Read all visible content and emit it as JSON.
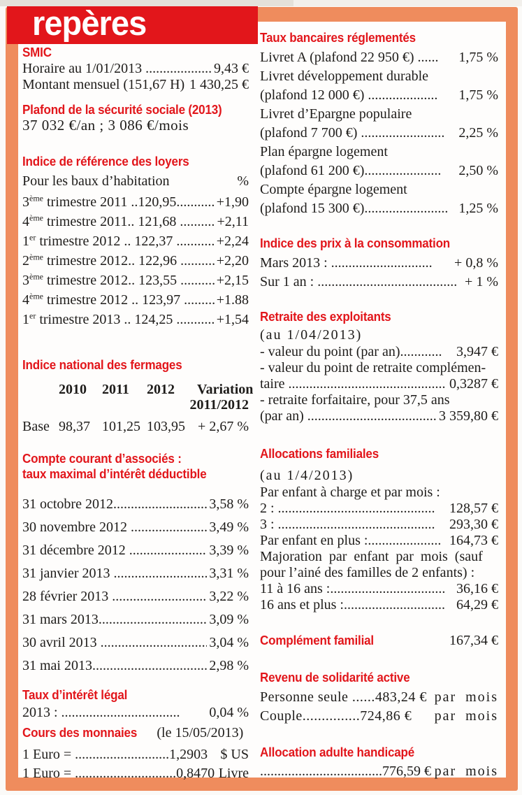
{
  "colors": {
    "accent_red": "#e2161b",
    "frame_orange": "#ef8c5d",
    "text_black": "#1e1c1a",
    "page_background": "#fbfaf8"
  },
  "banner": {
    "title": "repères"
  },
  "left_column": {
    "smic": {
      "heading": "SMIC",
      "rows": [
        {
          "label": "Horaire au 1/01/2013 .....................",
          "value": "9,43 €"
        },
        {
          "label": "Montant mensuel (151,67 H) ..",
          "value": "1 430,25 €"
        }
      ]
    },
    "plafond_secu": {
      "heading": "Plafond de la sécurité sociale (2013)",
      "text": "37 032 €/an ; 3 086 €/mois"
    },
    "indice_loyers": {
      "heading": "Indice de référence des loyers",
      "subheading": {
        "label": "Pour les baux d’habitation",
        "value": "%"
      },
      "rows": [
        {
          "num": "3",
          "sup": "ème",
          "label": " trimestre 2011 ..120,95.............",
          "value": "+1,90"
        },
        {
          "num": "4",
          "sup": "ème",
          "label": " trimestre 2011.. 121,68 ..........",
          "value": "+2,11"
        },
        {
          "num": "1",
          "sup": "er",
          "label": " trimestre 2012 .. 122,37 ............",
          "value": "+2,24"
        },
        {
          "num": "2",
          "sup": "ème",
          "label": " trimestre 2012.. 122,96 ............",
          "value": "+2,20"
        },
        {
          "num": "3",
          "sup": "ème",
          "label": " trimestre 2012.. 123,55 ............",
          "value": "+2,15"
        },
        {
          "num": "4",
          "sup": "ème",
          "label": " trimestre 2012 .. 123,97 ............",
          "value": "+1.88"
        },
        {
          "num": "1",
          "sup": "er",
          "label": " trimestre 2013 .. 124,25 ............",
          "value": "+1,54"
        }
      ]
    },
    "fermages": {
      "heading": "Indice national des fermages",
      "col_headers": [
        "2010",
        "2011",
        "2012",
        "Variation"
      ],
      "col_subheader": "2011/2012",
      "row_label": "Base",
      "row_values": [
        "98,37",
        "101,25",
        "103,95",
        "+ 2,67 %"
      ]
    },
    "compte_courant": {
      "heading_line1": "Compte courant d’associés :",
      "heading_line2": "taux maximal d’intérêt déductible",
      "rows": [
        {
          "label": "31 octobre 2012...........................",
          "value": "3,58 %"
        },
        {
          "label": "30 novembre 2012 ......................",
          "value": "3,49 %"
        },
        {
          "label": "31 décembre 2012  ......................",
          "value": "3,39 %"
        },
        {
          "label": "31 janvier 2013 ...........................",
          "value": "3,31 %"
        },
        {
          "label": "28 février 2013  ...........................",
          "value": "3,22 %"
        },
        {
          "label": "31 mars 2013...............................",
          "value": "3,09 %"
        },
        {
          "label": "30 avril 2013 ...............................",
          "value": "3,04 %"
        },
        {
          "label": "31 mai 2013.................................",
          "value": "2,98 %"
        }
      ]
    },
    "taux_legal": {
      "heading": "Taux d’intérêt légal",
      "rows": [
        {
          "label": "2013 :  ..................................",
          "value": "0,04 %"
        }
      ]
    },
    "monnaies": {
      "heading": "Cours des monnaies",
      "date_note": "(le 15/05/2013)",
      "rows": [
        {
          "label": "1 Euro =  ...........................1,2903",
          "value": "$ US"
        },
        {
          "label": "1 Euro = .............................0,8470",
          "value": "Livre"
        }
      ]
    }
  },
  "right_column": {
    "taux_bancaires": {
      "heading": "Taux bancaires réglementés",
      "rows": [
        {
          "label": "Livret A (plafond 22 950 €) ......",
          "value": "1,75 %"
        },
        {
          "label": "Livret développement durable",
          "value": ""
        },
        {
          "label": "(plafond 12 000 €) ....................",
          "value": "1,75 %"
        },
        {
          "label": "Livret d’Epargne populaire",
          "value": ""
        },
        {
          "label": "(plafond 7 700  €) ........................",
          "value": "2,25 %"
        },
        {
          "label": "Plan épargne logement",
          "value": ""
        },
        {
          "label": "(plafond 61 200 €)......................",
          "value": "2,50 %"
        },
        {
          "label": "Compte épargne logement",
          "value": ""
        },
        {
          "label": "(plafond 15 300 €)........................",
          "value": "1,25 %"
        }
      ]
    },
    "prix_conso": {
      "heading": "Indice des prix à la consommation",
      "rows": [
        {
          "label": "Mars 2013  : .............................",
          "value": "+ 0,8 %"
        },
        {
          "label": "Sur 1 an : ........................................",
          "value": "+ 1 %"
        }
      ]
    },
    "retraite": {
      "heading": "Retraite des exploitants",
      "note": "(au 1/04/2013)",
      "rows": [
        {
          "label": "- valeur du point (par an)............",
          "value": "3,947 €"
        },
        {
          "label": "- valeur du point de retraite complémen-",
          "value": ""
        },
        {
          "label": "taire .............................................",
          "value": "0,3287 €"
        },
        {
          "label": "- retraite forfaitaire, pour 37,5 ans",
          "value": ""
        },
        {
          "label": "(par an) ......................................",
          "value": "3 359,80 €"
        }
      ]
    },
    "allocations": {
      "heading": "Allocations  familiales",
      "note": "(au 1/4/2013)",
      "rows": [
        {
          "label": "Par enfant à charge et par mois :",
          "value": ""
        },
        {
          "label": "2 :  .............................................",
          "value": "128,57 €"
        },
        {
          "label": "3 : .............................................",
          "value": "293,30 €"
        },
        {
          "label": "Par enfant en plus :.....................",
          "value": "164,73 €"
        },
        {
          "label": "Majoration par enfant par mois (sauf",
          "value": ""
        },
        {
          "label": "pour l’ainé des familles de 2 enfants) :",
          "value": ""
        },
        {
          "label": "11 à 16 ans :.................................",
          "value": "36,16 €"
        },
        {
          "label": "16 ans et plus :.............................",
          "value": "64,29 €"
        }
      ]
    },
    "complement_familial": {
      "heading": "Complément familial",
      "value": "167,34 €"
    },
    "rsa": {
      "heading": "Revenu de solidarité active",
      "rows": [
        {
          "label": "Personne seule ......483,24 €",
          "value": "par mois"
        },
        {
          "label": "Couple...............724,86 €",
          "value": "par mois"
        }
      ]
    },
    "aah": {
      "heading": "Allocation adulte handicapé",
      "rows": [
        {
          "label": "...................................776,59 €",
          "value": "par mois"
        }
      ]
    }
  }
}
